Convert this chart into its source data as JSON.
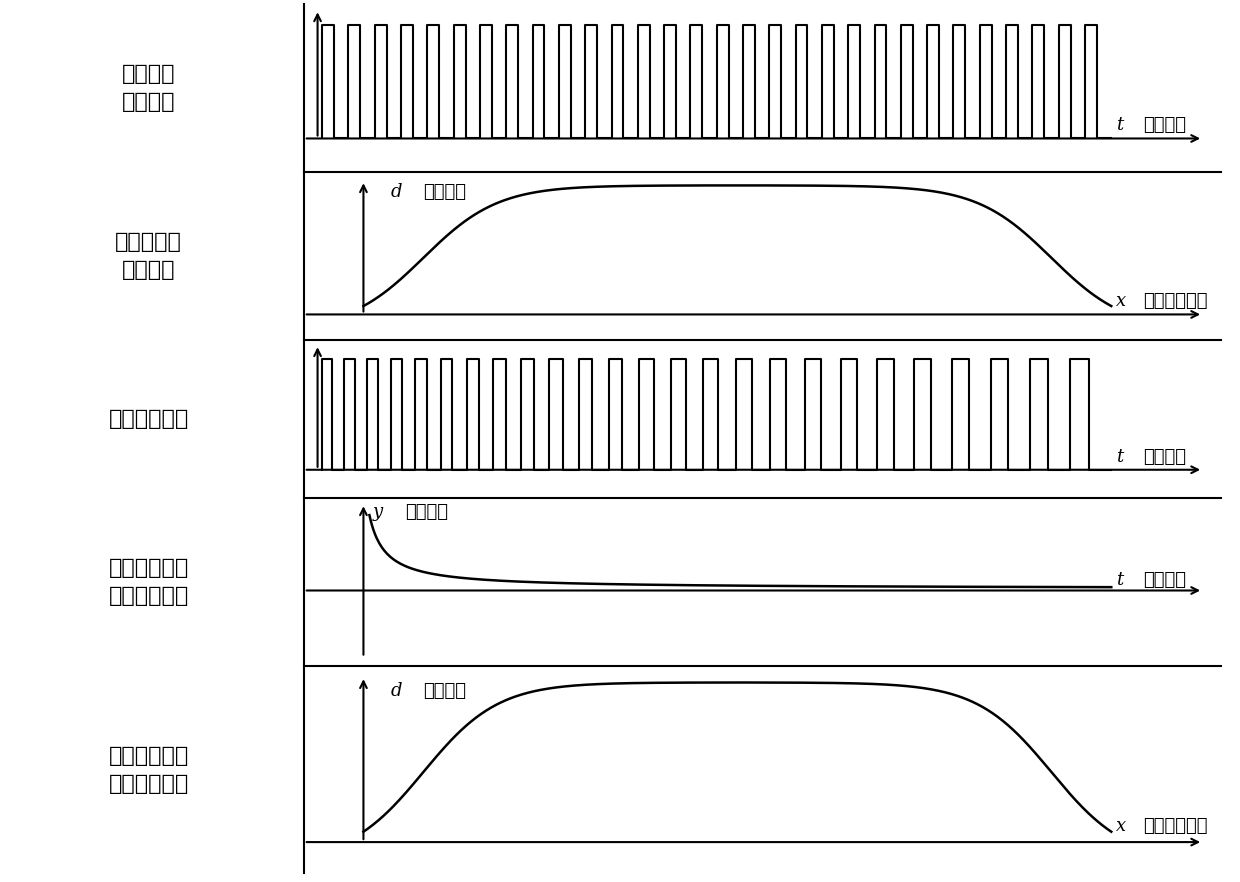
{
  "bg_color": "#ffffff",
  "line_color": "#000000",
  "labels": [
    "高频调制\n发射激光",
    "被扫描目标\n表面距离",
    "激光回波信号",
    "根据频率计算\n距离变化速率",
    "根据距离变化\n速率计算距离"
  ],
  "axis_labels": {
    "t_time": "t（时间）",
    "x_scan": "x（扫描位置）",
    "d_dist": "d（距离）",
    "y_freq": "y（频率）",
    "t": "t",
    "x": "x",
    "d": "d",
    "y": "y"
  },
  "pulse_freq_emit": 30,
  "pulse_freq_echo": 25,
  "font_size_label": 16,
  "font_size_axis": 13
}
